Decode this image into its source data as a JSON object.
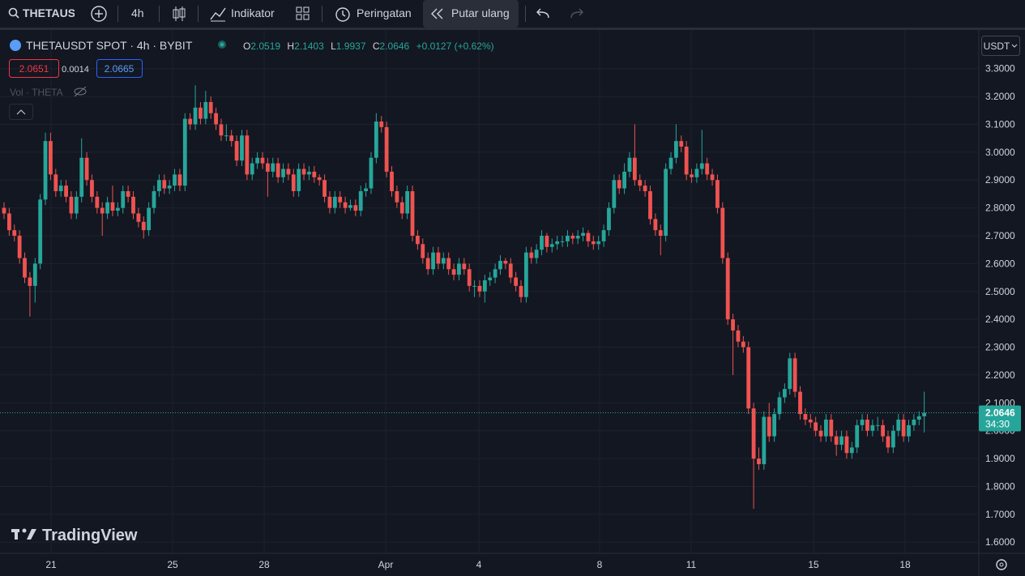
{
  "toolbar": {
    "symbol": "THETAUS",
    "interval": "4h",
    "indicators": "Indikator",
    "alerts": "Peringatan",
    "replay": "Putar ulang"
  },
  "legend": {
    "title": "THETAUSDT SPOT · 4h · BYBIT",
    "o_label": "O",
    "open": "2.0519",
    "h_label": "H",
    "high": "2.1403",
    "l_label": "L",
    "low": "1.9937",
    "c_label": "C",
    "close": "2.0646",
    "change": "+0.0127 (+0.62%)",
    "bid": "2.0651",
    "spread": "0.0014",
    "ask": "2.0665",
    "volume": "Vol · THETA"
  },
  "currency": "USDT",
  "brand": "TradingView",
  "chart_data": {
    "type": "candlestick",
    "up_color": "#26a69a",
    "down_color": "#ef5350",
    "grid": true,
    "ylim": [
      1.56,
      3.43
    ],
    "yticks": [
      {
        "value": 3.3,
        "label": "3.3000"
      },
      {
        "value": 3.2,
        "label": "3.2000"
      },
      {
        "value": 3.1,
        "label": "3.1000"
      },
      {
        "value": 3.0,
        "label": "3.0000"
      },
      {
        "value": 2.9,
        "label": "2.9000"
      },
      {
        "value": 2.8,
        "label": "2.8000"
      },
      {
        "value": 2.7,
        "label": "2.7000"
      },
      {
        "value": 2.6,
        "label": "2.6000"
      },
      {
        "value": 2.5,
        "label": "2.5000"
      },
      {
        "value": 2.4,
        "label": "2.4000"
      },
      {
        "value": 2.3,
        "label": "2.3000"
      },
      {
        "value": 2.2,
        "label": "2.2000"
      },
      {
        "value": 2.1,
        "label": "2.1000"
      },
      {
        "value": 2.0,
        "label": "2.0000"
      },
      {
        "value": 1.9,
        "label": "1.9000"
      },
      {
        "value": 1.8,
        "label": "1.8000"
      },
      {
        "value": 1.7,
        "label": "1.7000"
      },
      {
        "value": 1.6,
        "label": "1.6000"
      }
    ],
    "x_labels": [
      "21",
      "25",
      "28",
      "Apr",
      "4",
      "8",
      "11",
      "15",
      "18"
    ],
    "last_price": {
      "value": 2.0646,
      "label": "2.0646",
      "countdown": "34:30"
    },
    "candles": [
      [
        2.8,
        2.82,
        2.76,
        2.78
      ],
      [
        2.78,
        2.8,
        2.7,
        2.72
      ],
      [
        2.72,
        2.74,
        2.68,
        2.7
      ],
      [
        2.7,
        2.72,
        2.6,
        2.62
      ],
      [
        2.62,
        2.64,
        2.53,
        2.55
      ],
      [
        2.55,
        2.57,
        2.41,
        2.52
      ],
      [
        2.52,
        2.62,
        2.46,
        2.6
      ],
      [
        2.6,
        2.85,
        2.58,
        2.83
      ],
      [
        2.83,
        3.07,
        2.81,
        3.04
      ],
      [
        3.04,
        3.07,
        2.9,
        2.92
      ],
      [
        2.92,
        2.94,
        2.84,
        2.86
      ],
      [
        2.86,
        2.9,
        2.84,
        2.88
      ],
      [
        2.88,
        2.9,
        2.82,
        2.84
      ],
      [
        2.84,
        2.86,
        2.76,
        2.78
      ],
      [
        2.78,
        2.86,
        2.76,
        2.84
      ],
      [
        2.84,
        3.05,
        2.82,
        2.98
      ],
      [
        2.98,
        3.0,
        2.88,
        2.9
      ],
      [
        2.9,
        2.92,
        2.82,
        2.84
      ],
      [
        2.84,
        2.86,
        2.78,
        2.8
      ],
      [
        2.8,
        2.82,
        2.7,
        2.78
      ],
      [
        2.78,
        2.84,
        2.76,
        2.82
      ],
      [
        2.82,
        2.88,
        2.77,
        2.79
      ],
      [
        2.79,
        2.82,
        2.77,
        2.8
      ],
      [
        2.8,
        2.88,
        2.78,
        2.86
      ],
      [
        2.86,
        2.88,
        2.82,
        2.84
      ],
      [
        2.84,
        2.86,
        2.76,
        2.78
      ],
      [
        2.78,
        2.8,
        2.73,
        2.75
      ],
      [
        2.75,
        2.77,
        2.69,
        2.72
      ],
      [
        2.72,
        2.82,
        2.7,
        2.8
      ],
      [
        2.8,
        2.88,
        2.78,
        2.86
      ],
      [
        2.86,
        2.92,
        2.84,
        2.9
      ],
      [
        2.9,
        2.92,
        2.85,
        2.87
      ],
      [
        2.87,
        2.9,
        2.85,
        2.88
      ],
      [
        2.88,
        2.94,
        2.86,
        2.92
      ],
      [
        2.92,
        2.94,
        2.86,
        2.88
      ],
      [
        2.88,
        3.14,
        2.86,
        3.12
      ],
      [
        3.12,
        3.14,
        3.08,
        3.1
      ],
      [
        3.1,
        3.24,
        3.08,
        3.16
      ],
      [
        3.16,
        3.18,
        3.1,
        3.12
      ],
      [
        3.12,
        3.22,
        3.1,
        3.18
      ],
      [
        3.18,
        3.2,
        3.12,
        3.14
      ],
      [
        3.14,
        3.16,
        3.08,
        3.1
      ],
      [
        3.1,
        3.12,
        3.04,
        3.06
      ],
      [
        3.06,
        3.1,
        3.04,
        3.06
      ],
      [
        3.06,
        3.08,
        3.02,
        3.04
      ],
      [
        3.04,
        3.06,
        2.95,
        2.97
      ],
      [
        2.97,
        3.08,
        2.95,
        3.06
      ],
      [
        3.06,
        3.08,
        2.9,
        2.92
      ],
      [
        2.92,
        2.98,
        2.9,
        2.96
      ],
      [
        2.96,
        3.0,
        2.94,
        2.98
      ],
      [
        2.98,
        3.0,
        2.94,
        2.96
      ],
      [
        2.96,
        2.98,
        2.84,
        2.93
      ],
      [
        2.93,
        2.98,
        2.91,
        2.96
      ],
      [
        2.96,
        2.98,
        2.89,
        2.91
      ],
      [
        2.91,
        2.96,
        2.89,
        2.94
      ],
      [
        2.94,
        2.96,
        2.9,
        2.92
      ],
      [
        2.92,
        2.94,
        2.84,
        2.86
      ],
      [
        2.86,
        2.96,
        2.84,
        2.94
      ],
      [
        2.94,
        2.96,
        2.9,
        2.92
      ],
      [
        2.92,
        2.95,
        2.9,
        2.93
      ],
      [
        2.93,
        2.95,
        2.89,
        2.91
      ],
      [
        2.91,
        2.92,
        2.88,
        2.9
      ],
      [
        2.9,
        2.92,
        2.82,
        2.84
      ],
      [
        2.84,
        2.86,
        2.78,
        2.8
      ],
      [
        2.8,
        2.86,
        2.78,
        2.84
      ],
      [
        2.84,
        2.86,
        2.8,
        2.82
      ],
      [
        2.82,
        2.84,
        2.78,
        2.8
      ],
      [
        2.8,
        2.83,
        2.79,
        2.81
      ],
      [
        2.81,
        2.83,
        2.77,
        2.79
      ],
      [
        2.79,
        2.88,
        2.77,
        2.86
      ],
      [
        2.86,
        2.89,
        2.84,
        2.87
      ],
      [
        2.87,
        3.0,
        2.85,
        2.98
      ],
      [
        2.98,
        3.14,
        2.96,
        3.11
      ],
      [
        3.11,
        3.13,
        3.07,
        3.09
      ],
      [
        3.09,
        3.11,
        2.91,
        2.93
      ],
      [
        2.93,
        2.95,
        2.84,
        2.86
      ],
      [
        2.86,
        2.88,
        2.8,
        2.82
      ],
      [
        2.82,
        2.84,
        2.76,
        2.78
      ],
      [
        2.78,
        2.88,
        2.76,
        2.86
      ],
      [
        2.86,
        2.88,
        2.68,
        2.7
      ],
      [
        2.7,
        2.72,
        2.65,
        2.67
      ],
      [
        2.67,
        2.69,
        2.6,
        2.62
      ],
      [
        2.62,
        2.64,
        2.56,
        2.58
      ],
      [
        2.58,
        2.66,
        2.56,
        2.64
      ],
      [
        2.64,
        2.66,
        2.58,
        2.6
      ],
      [
        2.6,
        2.64,
        2.58,
        2.62
      ],
      [
        2.62,
        2.64,
        2.56,
        2.58
      ],
      [
        2.58,
        2.6,
        2.54,
        2.56
      ],
      [
        2.56,
        2.62,
        2.54,
        2.6
      ],
      [
        2.6,
        2.62,
        2.56,
        2.58
      ],
      [
        2.58,
        2.6,
        2.5,
        2.52
      ],
      [
        2.52,
        2.54,
        2.48,
        2.52
      ],
      [
        2.52,
        2.54,
        2.48,
        2.5
      ],
      [
        2.5,
        2.56,
        2.46,
        2.54
      ],
      [
        2.54,
        2.57,
        2.52,
        2.55
      ],
      [
        2.55,
        2.6,
        2.53,
        2.58
      ],
      [
        2.58,
        2.63,
        2.56,
        2.61
      ],
      [
        2.61,
        2.62,
        2.58,
        2.6
      ],
      [
        2.6,
        2.62,
        2.53,
        2.55
      ],
      [
        2.55,
        2.57,
        2.5,
        2.52
      ],
      [
        2.52,
        2.54,
        2.46,
        2.48
      ],
      [
        2.48,
        2.66,
        2.46,
        2.64
      ],
      [
        2.64,
        2.66,
        2.6,
        2.62
      ],
      [
        2.62,
        2.67,
        2.6,
        2.65
      ],
      [
        2.65,
        2.72,
        2.63,
        2.7
      ],
      [
        2.7,
        2.71,
        2.64,
        2.66
      ],
      [
        2.66,
        2.69,
        2.64,
        2.67
      ],
      [
        2.67,
        2.7,
        2.65,
        2.68
      ],
      [
        2.68,
        2.7,
        2.66,
        2.68
      ],
      [
        2.68,
        2.72,
        2.66,
        2.7
      ],
      [
        2.7,
        2.71,
        2.67,
        2.69
      ],
      [
        2.69,
        2.72,
        2.67,
        2.7
      ],
      [
        2.7,
        2.73,
        2.68,
        2.71
      ],
      [
        2.71,
        2.72,
        2.66,
        2.68
      ],
      [
        2.68,
        2.7,
        2.65,
        2.67
      ],
      [
        2.67,
        2.7,
        2.65,
        2.68
      ],
      [
        2.68,
        2.74,
        2.66,
        2.72
      ],
      [
        2.72,
        2.82,
        2.7,
        2.8
      ],
      [
        2.8,
        2.92,
        2.78,
        2.9
      ],
      [
        2.9,
        2.92,
        2.85,
        2.87
      ],
      [
        2.87,
        2.96,
        2.85,
        2.93
      ],
      [
        2.93,
        3.0,
        2.91,
        2.98
      ],
      [
        2.98,
        3.1,
        2.88,
        2.9
      ],
      [
        2.9,
        2.92,
        2.86,
        2.88
      ],
      [
        2.88,
        2.9,
        2.84,
        2.86
      ],
      [
        2.86,
        2.88,
        2.74,
        2.76
      ],
      [
        2.76,
        2.78,
        2.7,
        2.72
      ],
      [
        2.72,
        2.74,
        2.63,
        2.7
      ],
      [
        2.7,
        2.96,
        2.68,
        2.94
      ],
      [
        2.94,
        3.0,
        2.92,
        2.98
      ],
      [
        2.98,
        3.1,
        2.96,
        3.04
      ],
      [
        3.04,
        3.06,
        3.0,
        3.02
      ],
      [
        3.02,
        3.04,
        2.9,
        2.92
      ],
      [
        2.92,
        2.94,
        2.89,
        2.91
      ],
      [
        2.91,
        2.96,
        2.89,
        2.94
      ],
      [
        2.94,
        3.08,
        2.92,
        2.96
      ],
      [
        2.96,
        2.98,
        2.9,
        2.92
      ],
      [
        2.92,
        2.94,
        2.88,
        2.9
      ],
      [
        2.9,
        2.92,
        2.78,
        2.8
      ],
      [
        2.8,
        2.82,
        2.6,
        2.62
      ],
      [
        2.62,
        2.64,
        2.38,
        2.4
      ],
      [
        2.4,
        2.42,
        2.2,
        2.36
      ],
      [
        2.36,
        2.38,
        2.3,
        2.32
      ],
      [
        2.32,
        2.34,
        2.28,
        2.3
      ],
      [
        2.3,
        2.32,
        2.06,
        2.08
      ],
      [
        2.08,
        2.1,
        1.72,
        1.9
      ],
      [
        1.9,
        1.94,
        1.86,
        1.88
      ],
      [
        1.88,
        2.07,
        1.86,
        2.05
      ],
      [
        2.05,
        2.1,
        1.96,
        1.98
      ],
      [
        1.98,
        2.08,
        1.96,
        2.06
      ],
      [
        2.06,
        2.14,
        2.04,
        2.12
      ],
      [
        2.12,
        2.17,
        2.1,
        2.15
      ],
      [
        2.15,
        2.28,
        2.13,
        2.26
      ],
      [
        2.26,
        2.28,
        2.12,
        2.14
      ],
      [
        2.14,
        2.16,
        2.04,
        2.06
      ],
      [
        2.06,
        2.08,
        2.02,
        2.04
      ],
      [
        2.04,
        2.06,
        2.01,
        2.03
      ],
      [
        2.03,
        2.05,
        1.98,
        2.0
      ],
      [
        2.0,
        2.02,
        1.96,
        1.98
      ],
      [
        1.98,
        2.06,
        1.96,
        2.04
      ],
      [
        2.04,
        2.06,
        1.96,
        1.98
      ],
      [
        1.98,
        2.0,
        1.91,
        1.95
      ],
      [
        1.95,
        2.0,
        1.93,
        1.98
      ],
      [
        1.98,
        2.0,
        1.9,
        1.92
      ],
      [
        1.92,
        1.96,
        1.9,
        1.94
      ],
      [
        1.94,
        2.04,
        1.92,
        2.02
      ],
      [
        2.02,
        2.06,
        2.0,
        2.04
      ],
      [
        2.04,
        2.06,
        1.98,
        2.0
      ],
      [
        2.0,
        2.04,
        1.98,
        2.02
      ],
      [
        2.02,
        2.05,
        2.0,
        2.02
      ],
      [
        2.02,
        2.04,
        1.96,
        1.98
      ],
      [
        1.98,
        2.0,
        1.92,
        1.94
      ],
      [
        1.94,
        2.02,
        1.92,
        2.0
      ],
      [
        2.0,
        2.06,
        1.98,
        2.04
      ],
      [
        2.04,
        2.06,
        1.96,
        1.98
      ],
      [
        1.98,
        2.04,
        1.96,
        2.02
      ],
      [
        2.02,
        2.06,
        2.0,
        2.04
      ],
      [
        2.04,
        2.07,
        2.02,
        2.0519
      ],
      [
        2.0519,
        2.1403,
        1.9937,
        2.0646
      ]
    ]
  }
}
